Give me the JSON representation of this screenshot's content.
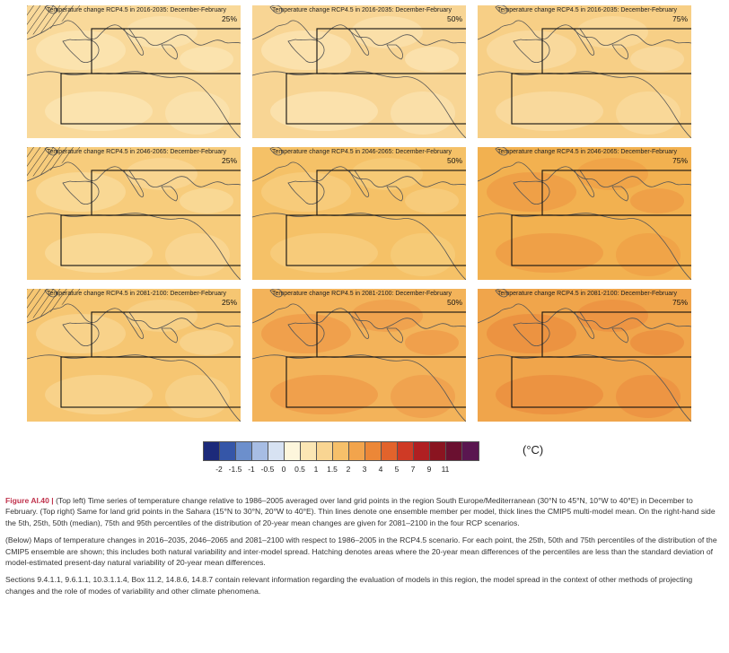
{
  "panels": [
    {
      "title": "Temperature change RCP4.5 in 2016-2035: December-February",
      "percentile": "25%",
      "hatch": true,
      "base": "#f9d99a",
      "blob": "#fbe4b2"
    },
    {
      "title": "Temperature change RCP4.5 in 2016-2035: December-February",
      "percentile": "50%",
      "hatch": false,
      "base": "#f8d594",
      "blob": "#fbe3b0"
    },
    {
      "title": "Temperature change RCP4.5 in 2016-2035: December-February",
      "percentile": "75%",
      "hatch": false,
      "base": "#f7cf86",
      "blob": "#f9dba0"
    },
    {
      "title": "Temperature change RCP4.5 in 2046-2065: December-February",
      "percentile": "25%",
      "hatch": true,
      "base": "#f7cc7c",
      "blob": "#f9d999"
    },
    {
      "title": "Temperature change RCP4.5 in 2046-2065: December-February",
      "percentile": "50%",
      "hatch": false,
      "base": "#f5c167",
      "blob": "#f7cd7e"
    },
    {
      "title": "Temperature change RCP4.5 in 2046-2065: December-February",
      "percentile": "75%",
      "hatch": false,
      "base": "#f2b150",
      "blob": "#ef9e45"
    },
    {
      "title": "Temperature change RCP4.5 in 2081-2100: December-February",
      "percentile": "25%",
      "hatch": true,
      "base": "#f6c672",
      "blob": "#f8d48e"
    },
    {
      "title": "Temperature change RCP4.5 in 2081-2100: December-February",
      "percentile": "50%",
      "hatch": false,
      "base": "#f3b35a",
      "blob": "#ee9c4a"
    },
    {
      "title": "Temperature change RCP4.5 in 2081-2100: December-February",
      "percentile": "75%",
      "hatch": false,
      "base": "#f0a54b",
      "blob": "#eb8f40"
    }
  ],
  "legend": {
    "colors": [
      "#1c2a7a",
      "#3556a8",
      "#6c8fcc",
      "#a7bde4",
      "#d7e2f2",
      "#fdf6dc",
      "#fbe6b4",
      "#f9d592",
      "#f6c06a",
      "#f2a44c",
      "#ec8737",
      "#e2632c",
      "#cf3a25",
      "#b01f22",
      "#8a1420",
      "#6a1030",
      "#5a1650"
    ],
    "ticks": [
      "-2",
      "-1.5",
      "-1",
      "-0.5",
      "0",
      "0.5",
      "1",
      "1.5",
      "2",
      "3",
      "4",
      "5",
      "7",
      "9",
      "11"
    ],
    "unit": "(°C)"
  },
  "caption": {
    "fig_label": "Figure AI.40 |",
    "p1": "(Top left) Time series of temperature change relative to 1986–2005 averaged over land grid points in the region South Europe/Mediterranean (30°N to 45°N, 10°W to 40°E) in December to February. (Top right) Same for land grid points in the Sahara (15°N to 30°N, 20°W to 40°E). Thin lines denote one ensemble member per model, thick lines the CMIP5 multi-model mean. On the right-hand side the 5th, 25th, 50th (median), 75th and 95th percentiles of the distribution of 20-year mean changes are given for 2081–2100 in the four RCP scenarios.",
    "p2": "(Below) Maps of temperature changes in 2016–2035, 2046–2065 and 2081–2100 with respect to 1986–2005 in the RCP4.5 scenario. For each point, the 25th, 50th and 75th percentiles of the distribution of the CMIP5 ensemble are shown; this includes both natural variability and inter-model spread. Hatching denotes areas where the 20-year mean differences of the percentiles are less than the standard deviation of model-estimated present-day natural variability of 20-year mean differences.",
    "p3": "Sections 9.4.1.1, 9.6.1.1, 10.3.1.1.4, Box 11.2, 14.8.6, 14.8.7 contain relevant information regarding the evaluation of models in this region, the model spread in the context of other methods of projecting changes and the role of modes of variability and other climate phenomena."
  }
}
